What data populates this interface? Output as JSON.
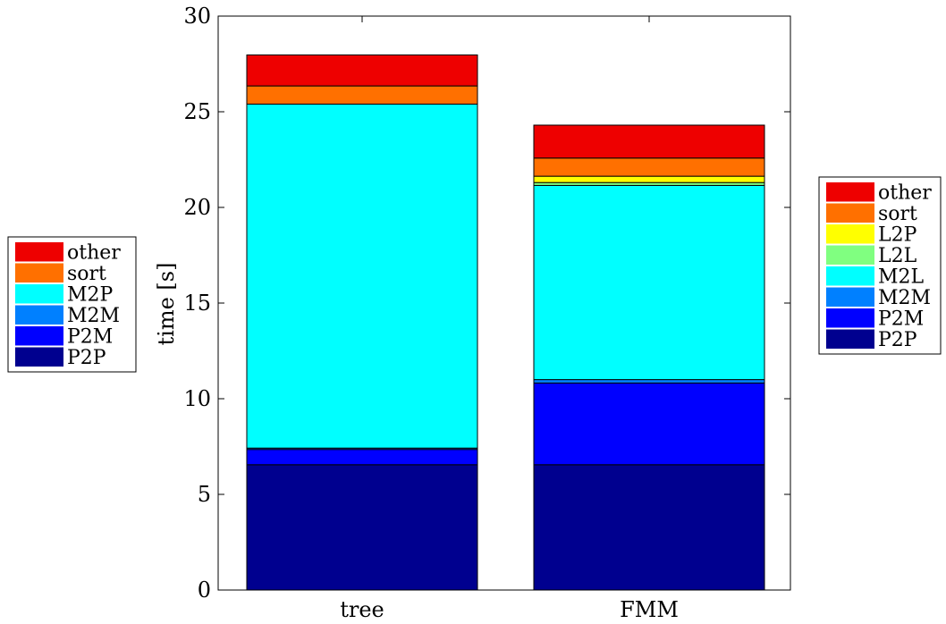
{
  "chart_data": {
    "type": "bar",
    "stacked": true,
    "categories": [
      "tree",
      "FMM"
    ],
    "ylabel": "time [s]",
    "xlabel": "",
    "ylim": [
      0,
      30
    ],
    "yticks": [
      0,
      5,
      10,
      15,
      20,
      25,
      30
    ],
    "grid": false,
    "bars": [
      {
        "category": "tree",
        "legend_placement": "left",
        "segments": [
          {
            "name": "P2P",
            "value": 6.55,
            "color": "#00008f"
          },
          {
            "name": "P2M",
            "value": 0.8,
            "color": "#0000ff"
          },
          {
            "name": "M2M",
            "value": 0.07,
            "color": "#0080ff"
          },
          {
            "name": "M2P",
            "value": 17.98,
            "color": "#00ffff"
          },
          {
            "name": "sort",
            "value": 0.95,
            "color": "#ff7000"
          },
          {
            "name": "other",
            "value": 1.62,
            "color": "#ee0000"
          }
        ]
      },
      {
        "category": "FMM",
        "legend_placement": "right",
        "segments": [
          {
            "name": "P2P",
            "value": 6.55,
            "color": "#00008f"
          },
          {
            "name": "P2M",
            "value": 4.27,
            "color": "#0000ff"
          },
          {
            "name": "M2M",
            "value": 0.18,
            "color": "#0080ff"
          },
          {
            "name": "M2L",
            "value": 10.15,
            "color": "#00ffff"
          },
          {
            "name": "L2L",
            "value": 0.15,
            "color": "#80ff80"
          },
          {
            "name": "L2P",
            "value": 0.33,
            "color": "#ffff00"
          },
          {
            "name": "sort",
            "value": 0.95,
            "color": "#ff7000"
          },
          {
            "name": "other",
            "value": 1.72,
            "color": "#ee0000"
          }
        ]
      }
    ]
  }
}
